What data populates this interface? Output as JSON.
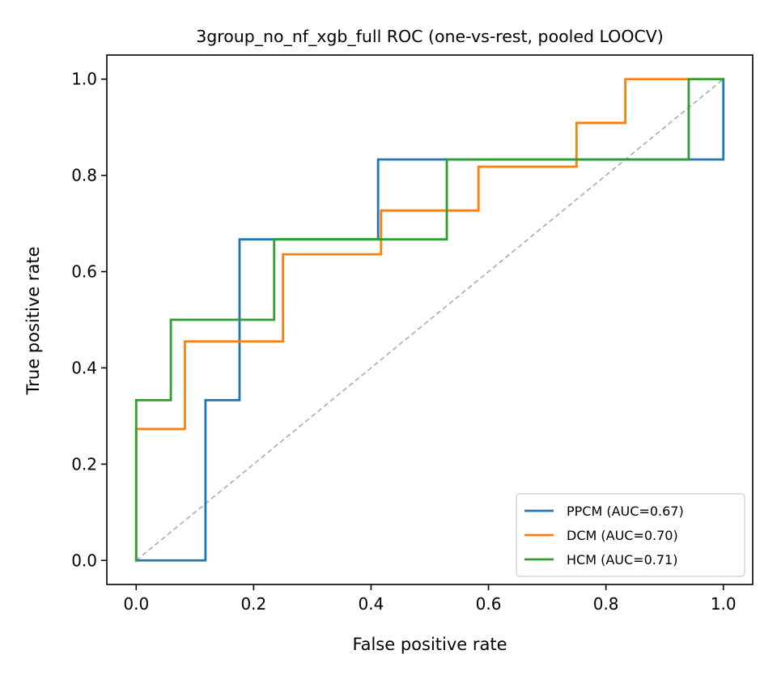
{
  "chart_data": {
    "type": "line",
    "title": "3group_no_nf_xgb_full ROC (one-vs-rest, pooled LOOCV)",
    "xlabel": "False positive rate",
    "ylabel": "True positive rate",
    "xlim": [
      -0.05,
      1.05
    ],
    "ylim": [
      -0.05,
      1.05
    ],
    "xticks": [
      0.0,
      0.2,
      0.4,
      0.6,
      0.8,
      1.0
    ],
    "yticks": [
      0.0,
      0.2,
      0.4,
      0.6,
      0.8,
      1.0
    ],
    "xtick_labels": [
      "0.0",
      "0.2",
      "0.4",
      "0.6",
      "0.8",
      "1.0"
    ],
    "ytick_labels": [
      "0.0",
      "0.2",
      "0.4",
      "0.6",
      "0.8",
      "1.0"
    ],
    "grid": false,
    "legend_position": "lower-right",
    "step": "post",
    "series": [
      {
        "name": "PPCM (AUC=0.67)",
        "color": "#1f77b4",
        "x": [
          0.0,
          0.0,
          0.118,
          0.118,
          0.176,
          0.176,
          0.412,
          0.412,
          1.0,
          1.0
        ],
        "y": [
          0.0,
          0.0,
          0.0,
          0.333,
          0.333,
          0.667,
          0.667,
          0.833,
          0.833,
          1.0
        ]
      },
      {
        "name": "DCM (AUC=0.70)",
        "color": "#ff7f0e",
        "x": [
          0.0,
          0.0,
          0.083,
          0.083,
          0.25,
          0.25,
          0.417,
          0.417,
          0.583,
          0.583,
          0.75,
          0.75,
          0.833,
          0.833,
          1.0
        ],
        "y": [
          0.0,
          0.273,
          0.273,
          0.455,
          0.455,
          0.636,
          0.636,
          0.727,
          0.727,
          0.818,
          0.818,
          0.909,
          0.909,
          1.0,
          1.0
        ]
      },
      {
        "name": "HCM (AUC=0.71)",
        "color": "#2ca02c",
        "x": [
          0.0,
          0.0,
          0.059,
          0.059,
          0.235,
          0.235,
          0.529,
          0.529,
          0.941,
          0.941,
          1.0
        ],
        "y": [
          0.0,
          0.333,
          0.333,
          0.5,
          0.5,
          0.667,
          0.667,
          0.833,
          0.833,
          1.0,
          1.0
        ]
      }
    ],
    "reference_line": {
      "color": "#aaaaaa",
      "style": "dashed",
      "x": [
        0.0,
        1.0
      ],
      "y": [
        0.0,
        1.0
      ]
    }
  }
}
